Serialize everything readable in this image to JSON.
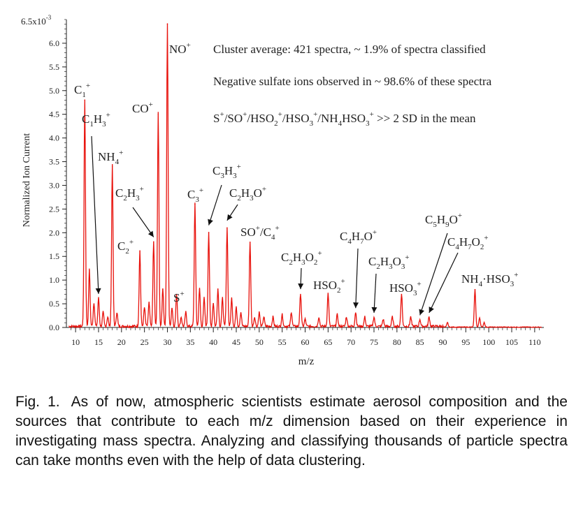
{
  "chart_data": {
    "type": "line",
    "xlabel": "m/z",
    "ylabel": "Normalized Ion Current",
    "xlim": [
      8,
      112
    ],
    "ylim": [
      0,
      6.5
    ],
    "y_exponent_label": "6.5x10",
    "y_exponent_power": "-3",
    "x_ticks": [
      "10",
      "15",
      "20",
      "25",
      "30",
      "35",
      "40",
      "45",
      "50",
      "55",
      "60",
      "65",
      "70",
      "75",
      "80",
      "85",
      "90",
      "95",
      "100",
      "105",
      "110"
    ],
    "y_ticks": [
      "0.0",
      "0.5",
      "1.0",
      "1.5",
      "2.0",
      "2.5",
      "3.0",
      "3.5",
      "4.0",
      "4.5",
      "5.0",
      "5.5",
      "6.0"
    ],
    "series_color": "#e8120c",
    "peaks": [
      {
        "mz": 12,
        "y": 4.8
      },
      {
        "mz": 13,
        "y": 1.2
      },
      {
        "mz": 14,
        "y": 0.5
      },
      {
        "mz": 15,
        "y": 0.6
      },
      {
        "mz": 16,
        "y": 0.3
      },
      {
        "mz": 17,
        "y": 0.2
      },
      {
        "mz": 18,
        "y": 3.4
      },
      {
        "mz": 19,
        "y": 0.3
      },
      {
        "mz": 24,
        "y": 1.6
      },
      {
        "mz": 25,
        "y": 0.4
      },
      {
        "mz": 26,
        "y": 0.5
      },
      {
        "mz": 27,
        "y": 1.8
      },
      {
        "mz": 28,
        "y": 4.5
      },
      {
        "mz": 29,
        "y": 0.8
      },
      {
        "mz": 30,
        "y": 6.4
      },
      {
        "mz": 31,
        "y": 0.4
      },
      {
        "mz": 32,
        "y": 0.7
      },
      {
        "mz": 33,
        "y": 0.2
      },
      {
        "mz": 34,
        "y": 0.3
      },
      {
        "mz": 36,
        "y": 2.6
      },
      {
        "mz": 37,
        "y": 0.8
      },
      {
        "mz": 38,
        "y": 0.6
      },
      {
        "mz": 39,
        "y": 2.0
      },
      {
        "mz": 40,
        "y": 0.5
      },
      {
        "mz": 41,
        "y": 0.8
      },
      {
        "mz": 42,
        "y": 0.6
      },
      {
        "mz": 43,
        "y": 2.1
      },
      {
        "mz": 44,
        "y": 0.6
      },
      {
        "mz": 45,
        "y": 0.4
      },
      {
        "mz": 46,
        "y": 0.3
      },
      {
        "mz": 48,
        "y": 1.8
      },
      {
        "mz": 49,
        "y": 0.2
      },
      {
        "mz": 50,
        "y": 0.3
      },
      {
        "mz": 51,
        "y": 0.2
      },
      {
        "mz": 53,
        "y": 0.2
      },
      {
        "mz": 55,
        "y": 0.25
      },
      {
        "mz": 57,
        "y": 0.3
      },
      {
        "mz": 59,
        "y": 0.7
      },
      {
        "mz": 60,
        "y": 0.15
      },
      {
        "mz": 63,
        "y": 0.2
      },
      {
        "mz": 65,
        "y": 0.7
      },
      {
        "mz": 67,
        "y": 0.25
      },
      {
        "mz": 69,
        "y": 0.2
      },
      {
        "mz": 71,
        "y": 0.3
      },
      {
        "mz": 73,
        "y": 0.2
      },
      {
        "mz": 75,
        "y": 0.2
      },
      {
        "mz": 77,
        "y": 0.15
      },
      {
        "mz": 79,
        "y": 0.2
      },
      {
        "mz": 81,
        "y": 0.7
      },
      {
        "mz": 83,
        "y": 0.2
      },
      {
        "mz": 85,
        "y": 0.15
      },
      {
        "mz": 87,
        "y": 0.2
      },
      {
        "mz": 91,
        "y": 0.1
      },
      {
        "mz": 97,
        "y": 0.8
      },
      {
        "mz": 98,
        "y": 0.2
      },
      {
        "mz": 99,
        "y": 0.1
      }
    ],
    "annotations": [
      {
        "text": "C",
        "sub": "1",
        "sup": "+"
      },
      {
        "text": "C",
        "sub": "1",
        "text2": "H",
        "sub2": "3",
        "sup": "+"
      },
      {
        "text": "NH",
        "sub": "4",
        "sup": "+"
      },
      {
        "text": "C",
        "sub": "2",
        "sup": "+"
      },
      {
        "text": "C",
        "sub": "2",
        "text2": "H",
        "sub2": "3",
        "sup": "+"
      },
      {
        "text": "CO",
        "sup": "+"
      },
      {
        "text": "NO",
        "sup": "+"
      },
      {
        "text": "S",
        "sup": "+"
      },
      {
        "text": "C",
        "sub": "3",
        "sup": "+"
      },
      {
        "text": "C",
        "sub": "3",
        "text2": "H",
        "sub2": "3",
        "sup": "+"
      },
      {
        "text": "C",
        "sub": "2",
        "text2": "H",
        "sub2": "3",
        "text3": "O",
        "sup": "+"
      },
      {
        "text": "SO",
        "sup": "+",
        "text2": "/C",
        "sub2": "4",
        "sup2": "+"
      },
      {
        "text": "C",
        "sub": "2",
        "text2": "H",
        "sub2": "3",
        "text3": "O",
        "sub3": "2",
        "sup": "+"
      },
      {
        "text": "HSO",
        "sub": "2",
        "sup": "+"
      },
      {
        "text": "C",
        "sub": "4",
        "text2": "H",
        "sub2": "7",
        "text3": "O",
        "sup": "+"
      },
      {
        "text": "C",
        "sub": "2",
        "text2": "H",
        "sub2": "3",
        "text3": "O",
        "sub3": "3",
        "sup": "+"
      },
      {
        "text": "HSO",
        "sub": "3",
        "sup": "+"
      },
      {
        "text": "C",
        "sub": "5",
        "text2": "H",
        "sub2": "9",
        "text3": "O",
        "sup": "+"
      },
      {
        "text": "C",
        "sub": "4",
        "text2": "H",
        "sub2": "7",
        "text3": "O",
        "sub3": "2",
        "sup": "+"
      },
      {
        "text": "NH",
        "sub": "4",
        "text2": "·HSO",
        "sub2": "3",
        "sup": "+"
      }
    ],
    "info_lines": [
      "Cluster average: 421 spectra, ~ 1.9% of spectra classified",
      "Negative sulfate ions observed in ~ 98.6% of these spectra"
    ],
    "sd_line": {
      "parts": [
        "S",
        "+",
        "/SO",
        "+",
        "/HSO",
        "2",
        "+",
        "/HSO",
        "3",
        "+",
        "/NH",
        "4",
        "HSO",
        "3",
        "+",
        " >> 2 SD in the mean"
      ]
    }
  },
  "caption": {
    "label": "Fig. 1.",
    "text": "As of now, atmospheric scientists estimate aerosol composition and the sources that contribute to each m/z dimension based on their experience in investigating mass spectra. Analyzing and classifying thousands of particle spectra can take months even with the help of data clustering."
  }
}
